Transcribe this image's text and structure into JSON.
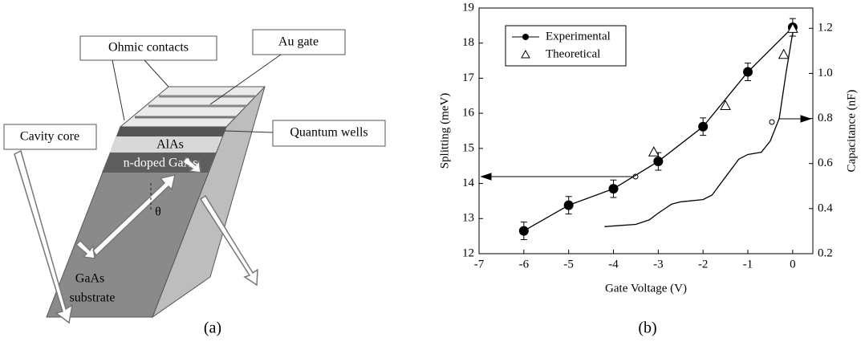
{
  "diagram": {
    "labels": {
      "ohmic": "Ohmic contacts",
      "gate": "Au gate",
      "wells": "Quantum wells",
      "cavity": "Cavity core",
      "alas": "AlAs",
      "ndoped": "n-doped GaAs",
      "gaas": "GaAs",
      "substrate": "substrate",
      "theta": "θ"
    }
  },
  "captions": [
    "(a)",
    "(b)"
  ],
  "chart_data": {
    "type": "line",
    "xlabel": "Gate Voltage (V)",
    "ylabel": "Splitting (meV)",
    "y2label": "Capacitance (nF)",
    "xlim": [
      -7,
      0.45
    ],
    "xticks": [
      -7,
      -6,
      -5,
      -4,
      -3,
      -2,
      -1,
      0
    ],
    "ylim": [
      12,
      19
    ],
    "yticks": [
      12,
      13,
      14,
      15,
      16,
      17,
      18,
      19
    ],
    "y2lim": [
      0.2,
      1.29
    ],
    "y2ticks": [
      0.2,
      0.4,
      0.6,
      0.8,
      {
        "value": 1.0,
        "label": "1.0"
      },
      1.2
    ],
    "legend": "upper-left",
    "series": [
      {
        "name": "Experimental",
        "color": "#000000",
        "marker": "circle",
        "x": [
          -6,
          -5,
          -4,
          -3,
          -2,
          -1,
          0
        ],
        "values": [
          12.65,
          13.38,
          13.85,
          14.63,
          15.62,
          17.18,
          18.45
        ],
        "errors": [
          0.25,
          0.25,
          0.25,
          0.25,
          0.25,
          0.25,
          0.25
        ]
      },
      {
        "name": "Theoretical",
        "color": "#000000",
        "marker": "triangle",
        "x": [
          -3.1,
          -1.5,
          -0.2,
          0
        ],
        "values": [
          14.9,
          16.22,
          17.68,
          18.42
        ]
      }
    ],
    "curve": {
      "axis": "y2",
      "color": "#000000",
      "x": [
        -4.2,
        -3.5,
        -3.2,
        -3.0,
        -2.7,
        -2.5,
        -2.0,
        -1.8,
        -1.5,
        -1.2,
        -1.0,
        -0.7,
        -0.5,
        -0.3,
        -0.15,
        0,
        0.1
      ],
      "values": [
        0.32,
        0.33,
        0.35,
        0.38,
        0.42,
        0.43,
        0.44,
        0.46,
        0.54,
        0.62,
        0.64,
        0.65,
        0.7,
        0.8,
        1.0,
        1.18,
        1.2
      ]
    }
  }
}
